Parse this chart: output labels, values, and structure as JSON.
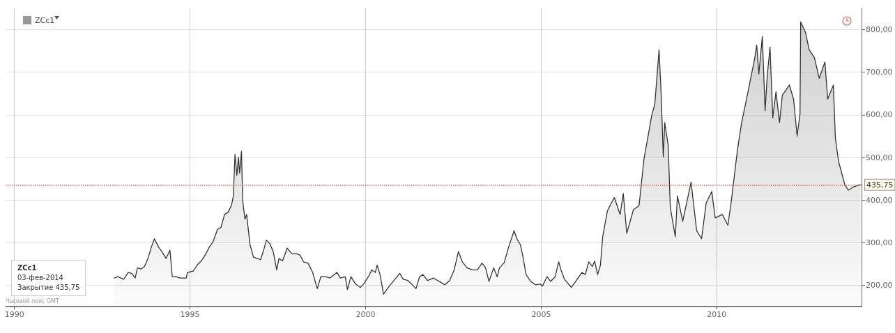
{
  "chart_data": {
    "type": "area",
    "x": [
      "1992-11-05",
      "1992-12-11",
      "1993-02-10",
      "1993-03-30",
      "1993-05-05",
      "1993-06-10",
      "1993-07-04",
      "1993-08-10",
      "1993-09-15",
      "1993-10-21",
      "1993-11-26",
      "1993-12-27",
      "1994-02-07",
      "1994-03-15",
      "1994-04-27",
      "1994-06-07",
      "1994-07-01",
      "1994-08-06",
      "1994-09-23",
      "1994-11-23",
      "1994-12-05",
      "1995-02-03",
      "1995-03-23",
      "1995-04-29",
      "1995-06-16",
      "1995-07-22",
      "1995-08-27",
      "1995-10-14",
      "1995-11-20",
      "1995-12-26",
      "1996-02-01",
      "1996-03-08",
      "1996-03-27",
      "1996-04-13",
      "1996-05-03",
      "1996-05-19",
      "1996-05-31",
      "1996-06-20",
      "1996-07-02",
      "1996-07-26",
      "1996-08-12",
      "1996-09-17",
      "1996-10-23",
      "1996-11-29",
      "1997-01-04",
      "1997-02-09",
      "1997-03-05",
      "1997-04-10",
      "1997-05-16",
      "1997-06-21",
      "1997-07-15",
      "1997-08-21",
      "1997-10-08",
      "1997-11-25",
      "1998-01-12",
      "1998-02-18",
      "1998-03-26",
      "1998-05-13",
      "1998-06-30",
      "1998-08-17",
      "1998-09-23",
      "1998-11-10",
      "1998-12-28",
      "1999-03-10",
      "1999-04-15",
      "1999-06-03",
      "1999-06-27",
      "1999-08-02",
      "1999-09-19",
      "1999-11-07",
      "1999-12-13",
      "2000-01-30",
      "2000-03-07",
      "2000-04-11",
      "2000-05-01",
      "2000-05-31",
      "2000-07-06",
      "2000-09-04",
      "2000-10-22",
      "2000-12-22",
      "2001-01-27",
      "2001-03-16",
      "2001-05-03",
      "2001-06-09",
      "2001-07-15",
      "2001-08-20",
      "2001-10-07",
      "2001-12-07",
      "2002-02-05",
      "2002-04-06",
      "2002-05-24",
      "2002-07-11",
      "2002-08-24",
      "2002-10-04",
      "2002-11-21",
      "2003-01-20",
      "2003-03-10",
      "2003-04-27",
      "2003-06-02",
      "2003-07-08",
      "2003-08-26",
      "2003-10-01",
      "2003-10-25",
      "2003-12-12",
      "2004-01-29",
      "2004-03-25",
      "2004-04-23",
      "2004-05-30",
      "2004-06-22",
      "2004-07-28",
      "2004-09-14",
      "2004-11-03",
      "2004-12-21",
      "2005-01-14",
      "2005-03-03",
      "2005-04-09",
      "2005-05-26",
      "2005-07-02",
      "2005-07-26",
      "2005-08-31",
      "2005-11-11",
      "2006-01-11",
      "2006-02-28",
      "2006-04-05",
      "2006-05-11",
      "2006-06-17",
      "2006-07-11",
      "2006-08-11",
      "2006-09-09",
      "2006-10-03",
      "2006-11-20",
      "2006-12-14",
      "2007-02-01",
      "2007-04-02",
      "2007-05-05",
      "2007-06-10",
      "2007-08-18",
      "2007-10-16",
      "2007-12-06",
      "2008-02-24",
      "2008-03-28",
      "2008-05-11",
      "2008-06-01",
      "2008-06-24",
      "2008-07-09",
      "2008-08-14",
      "2008-09-05",
      "2008-10-27",
      "2008-11-18",
      "2009-01-12",
      "2009-04-09",
      "2009-06-06",
      "2009-07-27",
      "2009-09-13",
      "2009-11-10",
      "2009-12-16",
      "2010-02-28",
      "2010-04-27",
      "2010-05-30",
      "2010-08-04",
      "2010-09-17",
      "2010-11-22",
      "2011-01-30",
      "2011-02-21",
      "2011-03-15",
      "2011-04-20",
      "2011-05-19",
      "2011-06-10",
      "2011-07-09",
      "2011-08-07",
      "2011-09-09",
      "2011-10-16",
      "2011-11-14",
      "2012-01-26",
      "2012-03-10",
      "2012-04-16",
      "2012-05-16",
      "2012-05-23",
      "2012-07-13",
      "2012-08-19",
      "2012-10-12",
      "2012-12-02",
      "2013-01-30",
      "2013-02-28",
      "2013-04-28",
      "2013-05-19",
      "2013-06-21",
      "2013-08-25",
      "2013-10-01",
      "2013-11-24",
      "2014-02-03"
    ],
    "series": [
      {
        "name": "ZCc1",
        "color": "#333333",
        "values": [
          217,
          220,
          214,
          230,
          228,
          217,
          241,
          238,
          244,
          263,
          290,
          309,
          290,
          279,
          263,
          282,
          220,
          220,
          217,
          217,
          230,
          233,
          249,
          257,
          274,
          290,
          301,
          331,
          336,
          366,
          371,
          388,
          409,
          507,
          458,
          501,
          463,
          515,
          398,
          355,
          366,
          295,
          266,
          263,
          260,
          285,
          306,
          298,
          279,
          236,
          263,
          257,
          287,
          274,
          274,
          271,
          255,
          252,
          230,
          192,
          220,
          220,
          217,
          230,
          217,
          220,
          190,
          220,
          203,
          195,
          203,
          220,
          236,
          230,
          247,
          225,
          179,
          198,
          211,
          228,
          214,
          211,
          201,
          192,
          220,
          225,
          211,
          217,
          209,
          201,
          211,
          236,
          279,
          255,
          241,
          236,
          236,
          252,
          241,
          209,
          241,
          220,
          241,
          252,
          290,
          328,
          309,
          295,
          271,
          225,
          209,
          201,
          203,
          198,
          220,
          209,
          220,
          255,
          236,
          214,
          195,
          214,
          230,
          225,
          255,
          244,
          257,
          225,
          247,
          314,
          374,
          385,
          406,
          366,
          415,
          322,
          377,
          387,
          496,
          598,
          626,
          753,
          654,
          501,
          582,
          528,
          382,
          314,
          410,
          350,
          442,
          328,
          309,
          393,
          420,
          358,
          366,
          341,
          393,
          517,
          582,
          654,
          732,
          764,
          696,
          784,
          610,
          691,
          759,
          593,
          654,
          582,
          646,
          670,
          637,
          550,
          602,
          818,
          793,
          753,
          735,
          686,
          724,
          637,
          670,
          545,
          491,
          436,
          423,
          431,
          436
        ]
      }
    ],
    "xlim": [
      "1989-10",
      "2014-02-15"
    ],
    "xticks": [
      "1990",
      "1995",
      "2000",
      "2005",
      "2010"
    ],
    "ylim": [
      150,
      850
    ],
    "yticks": [
      {
        "value": 200,
        "label": "200,00"
      },
      {
        "value": 300,
        "label": "300,00"
      },
      {
        "value": 400,
        "label": "400,00"
      },
      {
        "value": 500,
        "label": "500,00"
      },
      {
        "value": 600,
        "label": "600,00"
      },
      {
        "value": 700,
        "label": "700,00"
      },
      {
        "value": 800,
        "label": "800,00"
      }
    ],
    "ref_lines": [
      {
        "axis": "y",
        "value": 435.75,
        "label": "435,75",
        "color": "#e06666",
        "line_style": "dotted"
      }
    ],
    "annotations": [
      "ZCc1",
      "03-фев-2014",
      "Закрытие  435,75",
      "Часовой пояс GMT"
    ],
    "grid": true,
    "legend": "top left",
    "marker": "none"
  }
}
